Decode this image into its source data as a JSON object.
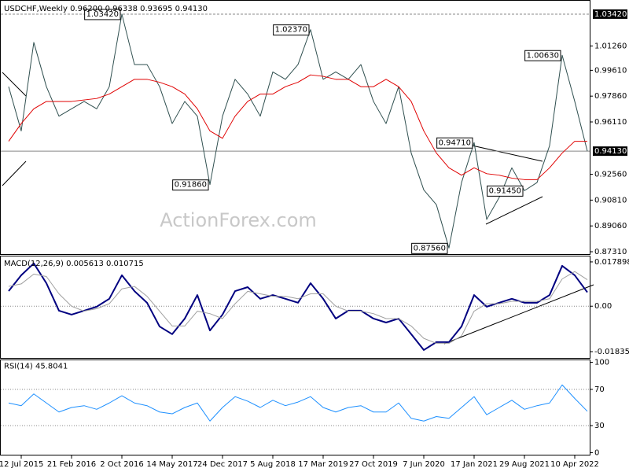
{
  "chart_data": [
    {
      "type": "line",
      "title": "USDCHF,Weekly  0.96200 0.96338 0.93695 0.94130",
      "watermark": "ActionForex.com",
      "categories": [
        null,
        "12 Jul 2015",
        null,
        null,
        null,
        "21 Feb 2016",
        null,
        null,
        null,
        "2 Oct 2016",
        null,
        null,
        null,
        "14 May 2017",
        null,
        null,
        null,
        "24 Dec 2017",
        null,
        null,
        null,
        "5 Aug 2018",
        null,
        null,
        null,
        "17 Mar 2019",
        null,
        null,
        null,
        "27 Oct 2019",
        null,
        null,
        null,
        "7 Jun 2020",
        null,
        null,
        null,
        "17 Jan 2021",
        null,
        null,
        null,
        "29 Aug 2021",
        null,
        null,
        null,
        "10 Apr 2022",
        null
      ],
      "series": [
        {
          "color": "#2f4f4f",
          "width": 1,
          "values": [
            0.985,
            0.955,
            1.015,
            0.985,
            0.965,
            0.97,
            0.975,
            0.97,
            0.985,
            1.0342,
            1.0,
            1.0,
            0.985,
            0.96,
            0.975,
            0.965,
            0.9186,
            0.965,
            0.99,
            0.98,
            0.965,
            0.995,
            0.99,
            1.0,
            1.0237,
            0.99,
            0.995,
            0.99,
            1.0,
            0.975,
            0.96,
            0.985,
            0.94,
            0.915,
            0.905,
            0.8756,
            0.92,
            0.9471,
            0.895,
            0.91,
            0.93,
            0.9145,
            0.92,
            0.945,
            1.0063,
            0.975,
            0.9413
          ],
          "value_labels": [
            null,
            null,
            null,
            null,
            null,
            null,
            null,
            null,
            null,
            "1.03420",
            null,
            null,
            null,
            null,
            null,
            null,
            "0.91860",
            null,
            null,
            null,
            null,
            null,
            null,
            null,
            "1.02370",
            null,
            null,
            null,
            null,
            null,
            null,
            null,
            null,
            null,
            null,
            "0.87560",
            null,
            "0.94710",
            null,
            null,
            null,
            "0.91450",
            null,
            null,
            "1.00630",
            null,
            null
          ]
        },
        {
          "color": "#e00000",
          "width": 1,
          "values": [
            0.948,
            0.96,
            0.97,
            0.975,
            0.975,
            0.975,
            0.976,
            0.977,
            0.98,
            0.985,
            0.99,
            0.99,
            0.988,
            0.985,
            0.98,
            0.97,
            0.955,
            0.95,
            0.965,
            0.975,
            0.98,
            0.98,
            0.985,
            0.988,
            0.993,
            0.992,
            0.99,
            0.99,
            0.985,
            0.985,
            0.99,
            0.985,
            0.975,
            0.955,
            0.94,
            0.93,
            0.925,
            0.93,
            0.926,
            0.925,
            0.923,
            0.922,
            0.922,
            0.93,
            0.94,
            0.948,
            0.948
          ]
        }
      ],
      "ylim": [
        0.8715,
        1.0427
      ],
      "yticks": [
        {
          "value": 1.0126,
          "label": "1.01260"
        },
        {
          "value": 0.9961,
          "label": "0.99610"
        },
        {
          "value": 0.9786,
          "label": "0.97860"
        },
        {
          "value": 0.9611,
          "label": "0.96110"
        },
        {
          "value": 0.9256,
          "label": "0.92560"
        },
        {
          "value": 0.9081,
          "label": "0.90810"
        },
        {
          "value": 0.8906,
          "label": "0.89060"
        },
        {
          "value": 0.8731,
          "label": "0.87310"
        }
      ],
      "hlines": [
        {
          "value": 1.0342,
          "label": "1.03420"
        },
        {
          "value": 0.9413,
          "label": "0.94130"
        }
      ]
    },
    {
      "type": "line",
      "title": "MACD(12,26,9) 0.005613 0.010715",
      "series": [
        {
          "color": "#000080",
          "width": 2,
          "values": [
            0.0061,
            0.0125,
            0.0173,
            0.0093,
            -0.0018,
            -0.0034,
            -0.0018,
            -0.0002,
            0.003,
            0.0125,
            0.0061,
            0.0014,
            -0.0082,
            -0.0113,
            -0.005,
            0.0045,
            -0.0098,
            -0.0034,
            0.0061,
            0.0077,
            0.003,
            0.0045,
            0.003,
            0.0014,
            0.0093,
            0.003,
            -0.005,
            -0.0018,
            -0.0018,
            -0.005,
            -0.0066,
            -0.005,
            -0.0113,
            -0.0177,
            -0.0145,
            -0.0145,
            -0.0082,
            0.0045,
            -0.0002,
            0.0014,
            0.003,
            0.0014,
            0.0014,
            0.0045,
            0.0163,
            0.0125,
            0.005613
          ]
        },
        {
          "color": "#a0a0a0",
          "width": 1,
          "values": [
            0.008,
            0.009,
            0.013,
            0.012,
            0.005,
            0.0,
            -0.002,
            -0.001,
            0.001,
            0.007,
            0.008,
            0.004,
            -0.002,
            -0.008,
            -0.008,
            -0.002,
            -0.003,
            -0.005,
            0.001,
            0.006,
            0.005,
            0.004,
            0.004,
            0.003,
            0.005,
            0.005,
            0.0,
            -0.002,
            -0.002,
            -0.003,
            -0.005,
            -0.005,
            -0.008,
            -0.013,
            -0.015,
            -0.015,
            -0.012,
            -0.002,
            0.001,
            0.001,
            0.002,
            0.002,
            0.002,
            0.003,
            0.011,
            0.014,
            0.010715
          ]
        }
      ],
      "ylim": [
        -0.0209,
        0.0201
      ],
      "yticks": [
        0.017898,
        {
          "value": 0,
          "label": "0.00"
        },
        -0.018354
      ],
      "levels": [
        0
      ]
    },
    {
      "type": "line",
      "title": "RSI(14) 45.8041",
      "series": [
        {
          "color": "#1e90ff",
          "width": 1,
          "values": [
            55,
            52,
            65,
            55,
            45,
            50,
            52,
            48,
            55,
            63,
            55,
            52,
            45,
            43,
            50,
            55,
            35,
            50,
            62,
            57,
            50,
            58,
            52,
            56,
            62,
            50,
            45,
            50,
            52,
            45,
            45,
            55,
            38,
            35,
            40,
            38,
            50,
            62,
            42,
            50,
            58,
            48,
            52,
            55,
            75,
            60,
            45.8041
          ]
        }
      ],
      "ylim": [
        0,
        100
      ],
      "yticks": [
        100,
        70,
        30,
        0
      ],
      "levels": [
        70,
        30
      ]
    }
  ]
}
